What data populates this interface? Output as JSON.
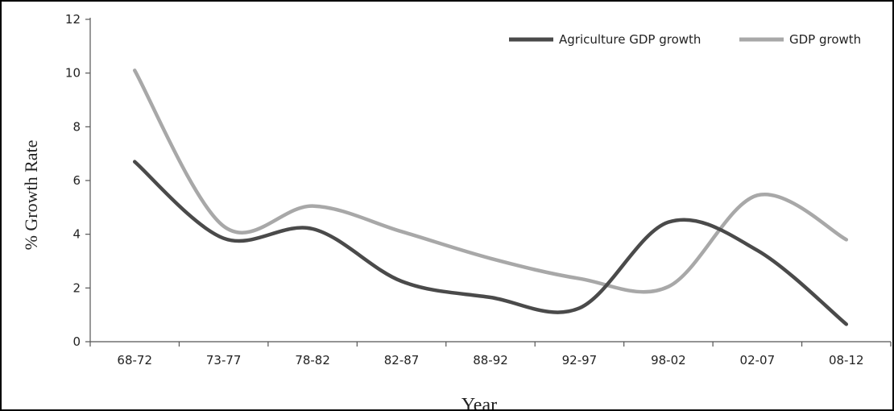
{
  "chart_data": {
    "type": "line",
    "categories": [
      "68-72",
      "73-77",
      "78-82",
      "82-87",
      "88-92",
      "92-97",
      "98-02",
      "02-07",
      "08-12"
    ],
    "series": [
      {
        "name": "Agriculture GDP growth",
        "color": "#4a4a4a",
        "values": [
          6.7,
          3.85,
          4.2,
          2.25,
          1.65,
          1.25,
          4.45,
          3.4,
          0.65
        ]
      },
      {
        "name": "GDP growth",
        "color": "#a8a8a8",
        "values": [
          10.1,
          4.3,
          5.05,
          4.1,
          3.1,
          2.35,
          2.05,
          5.45,
          3.8
        ]
      }
    ],
    "xlabel": "Year",
    "ylabel": "% Growth Rate",
    "ylim": [
      0,
      12
    ],
    "yticks": [
      0,
      2,
      4,
      6,
      8,
      10,
      12
    ],
    "grid": false,
    "legend_position": "top-right",
    "smooth": true
  }
}
